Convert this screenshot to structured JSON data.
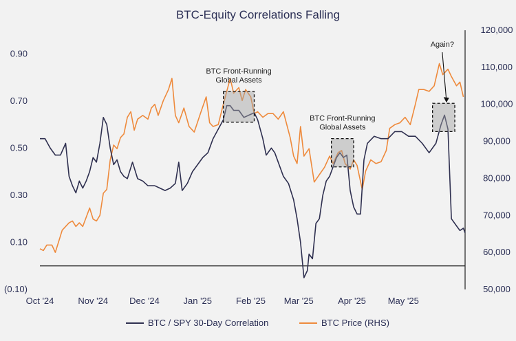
{
  "chart_data": {
    "type": "line",
    "title": "BTC-Equity Correlations Falling",
    "x_ticks": [
      "Oct '24",
      "Nov '24",
      "Dec '24",
      "Jan '25",
      "Feb '25",
      "Mar '25",
      "Apr '25",
      "May '25"
    ],
    "y_left_ticks": [
      "0.90",
      "0.70",
      "0.50",
      "0.30",
      "0.10",
      "(0.10)"
    ],
    "y_left_range": [
      -0.1,
      1.0
    ],
    "y_right_ticks": [
      "120,000",
      "110,000",
      "100,000",
      "90,000",
      "80,000",
      "70,000",
      "60,000",
      "50,000"
    ],
    "y_right_range": [
      50000,
      120000
    ],
    "series": [
      {
        "name": "BTC / SPY 30-Day Correlation",
        "axis": "left",
        "color": "#2f3050",
        "points": [
          [
            "2024-10-01",
            0.54
          ],
          [
            "2024-10-04",
            0.54
          ],
          [
            "2024-10-07",
            0.5
          ],
          [
            "2024-10-10",
            0.47
          ],
          [
            "2024-10-13",
            0.47
          ],
          [
            "2024-10-16",
            0.52
          ],
          [
            "2024-10-18",
            0.38
          ],
          [
            "2024-10-20",
            0.34
          ],
          [
            "2024-10-22",
            0.31
          ],
          [
            "2024-10-24",
            0.36
          ],
          [
            "2024-10-26",
            0.33
          ],
          [
            "2024-10-28",
            0.36
          ],
          [
            "2024-10-30",
            0.4
          ],
          [
            "2024-11-01",
            0.46
          ],
          [
            "2024-11-03",
            0.44
          ],
          [
            "2024-11-05",
            0.52
          ],
          [
            "2024-11-07",
            0.63
          ],
          [
            "2024-11-09",
            0.6
          ],
          [
            "2024-11-11",
            0.5
          ],
          [
            "2024-11-13",
            0.43
          ],
          [
            "2024-11-15",
            0.45
          ],
          [
            "2024-11-17",
            0.4
          ],
          [
            "2024-11-19",
            0.38
          ],
          [
            "2024-11-21",
            0.37
          ],
          [
            "2024-11-24",
            0.44
          ],
          [
            "2024-11-27",
            0.37
          ],
          [
            "2024-11-30",
            0.36
          ],
          [
            "2024-12-03",
            0.34
          ],
          [
            "2024-12-07",
            0.34
          ],
          [
            "2024-12-10",
            0.33
          ],
          [
            "2024-12-13",
            0.32
          ],
          [
            "2024-12-16",
            0.33
          ],
          [
            "2024-12-19",
            0.35
          ],
          [
            "2024-12-21",
            0.44
          ],
          [
            "2024-12-23",
            0.32
          ],
          [
            "2024-12-26",
            0.35
          ],
          [
            "2024-12-29",
            0.4
          ],
          [
            "2025-01-01",
            0.43
          ],
          [
            "2025-01-04",
            0.46
          ],
          [
            "2025-01-07",
            0.48
          ],
          [
            "2025-01-10",
            0.54
          ],
          [
            "2025-01-13",
            0.58
          ],
          [
            "2025-01-16",
            0.62
          ],
          [
            "2025-01-18",
            0.68
          ],
          [
            "2025-01-20",
            0.68
          ],
          [
            "2025-01-22",
            0.66
          ],
          [
            "2025-01-25",
            0.66
          ],
          [
            "2025-01-28",
            0.63
          ],
          [
            "2025-01-31",
            0.64
          ],
          [
            "2025-02-03",
            0.65
          ],
          [
            "2025-02-05",
            0.62
          ],
          [
            "2025-02-08",
            0.54
          ],
          [
            "2025-02-10",
            0.47
          ],
          [
            "2025-02-13",
            0.5
          ],
          [
            "2025-02-15",
            0.48
          ],
          [
            "2025-02-18",
            0.42
          ],
          [
            "2025-02-20",
            0.38
          ],
          [
            "2025-02-23",
            0.35
          ],
          [
            "2025-02-26",
            0.28
          ],
          [
            "2025-02-28",
            0.2
          ],
          [
            "2025-03-02",
            0.1
          ],
          [
            "2025-03-04",
            -0.05
          ],
          [
            "2025-03-06",
            -0.02
          ],
          [
            "2025-03-07",
            0.05
          ],
          [
            "2025-03-09",
            0.03
          ],
          [
            "2025-03-11",
            0.18
          ],
          [
            "2025-03-13",
            0.2
          ],
          [
            "2025-03-15",
            0.3
          ],
          [
            "2025-03-17",
            0.36
          ],
          [
            "2025-03-19",
            0.38
          ],
          [
            "2025-03-21",
            0.42
          ],
          [
            "2025-03-23",
            0.46
          ],
          [
            "2025-03-25",
            0.48
          ],
          [
            "2025-03-27",
            0.46
          ],
          [
            "2025-03-29",
            0.47
          ],
          [
            "2025-03-31",
            0.32
          ],
          [
            "2025-04-02",
            0.25
          ],
          [
            "2025-04-04",
            0.22
          ],
          [
            "2025-04-06",
            0.22
          ],
          [
            "2025-04-08",
            0.45
          ],
          [
            "2025-04-10",
            0.52
          ],
          [
            "2025-04-14",
            0.55
          ],
          [
            "2025-04-18",
            0.54
          ],
          [
            "2025-04-22",
            0.54
          ],
          [
            "2025-04-26",
            0.57
          ],
          [
            "2025-04-30",
            0.57
          ],
          [
            "2025-05-04",
            0.55
          ],
          [
            "2025-05-08",
            0.55
          ],
          [
            "2025-05-12",
            0.52
          ],
          [
            "2025-05-16",
            0.48
          ],
          [
            "2025-05-20",
            0.52
          ],
          [
            "2025-05-23",
            0.6
          ],
          [
            "2025-05-25",
            0.64
          ],
          [
            "2025-05-27",
            0.58
          ],
          [
            "2025-05-29",
            0.2
          ],
          [
            "2025-06-01",
            0.17
          ],
          [
            "2025-06-03",
            0.15
          ],
          [
            "2025-06-05",
            0.16
          ],
          [
            "2025-06-06",
            0.14
          ]
        ]
      },
      {
        "name": "BTC Price (RHS)",
        "axis": "right",
        "color": "#ee8a3c",
        "points": [
          [
            "2024-10-01",
            61000
          ],
          [
            "2024-10-03",
            60500
          ],
          [
            "2024-10-05",
            62000
          ],
          [
            "2024-10-08",
            62000
          ],
          [
            "2024-10-10",
            60000
          ],
          [
            "2024-10-12",
            63000
          ],
          [
            "2024-10-14",
            66000
          ],
          [
            "2024-10-16",
            67000
          ],
          [
            "2024-10-18",
            68000
          ],
          [
            "2024-10-20",
            68500
          ],
          [
            "2024-10-22",
            67000
          ],
          [
            "2024-10-24",
            68000
          ],
          [
            "2024-10-26",
            67000
          ],
          [
            "2024-10-28",
            69500
          ],
          [
            "2024-10-30",
            72000
          ],
          [
            "2024-11-01",
            69000
          ],
          [
            "2024-11-03",
            68500
          ],
          [
            "2024-11-05",
            70000
          ],
          [
            "2024-11-07",
            76000
          ],
          [
            "2024-11-09",
            77000
          ],
          [
            "2024-11-11",
            85000
          ],
          [
            "2024-11-13",
            89000
          ],
          [
            "2024-11-15",
            88000
          ],
          [
            "2024-11-17",
            91000
          ],
          [
            "2024-11-19",
            92000
          ],
          [
            "2024-11-21",
            96500
          ],
          [
            "2024-11-23",
            98000
          ],
          [
            "2024-11-25",
            93000
          ],
          [
            "2024-11-27",
            96000
          ],
          [
            "2024-11-30",
            97000
          ],
          [
            "2024-12-03",
            96000
          ],
          [
            "2024-12-05",
            99000
          ],
          [
            "2024-12-07",
            100000
          ],
          [
            "2024-12-09",
            97000
          ],
          [
            "2024-12-12",
            101000
          ],
          [
            "2024-12-15",
            104000
          ],
          [
            "2024-12-17",
            107000
          ],
          [
            "2024-12-19",
            97000
          ],
          [
            "2024-12-21",
            95000
          ],
          [
            "2024-12-24",
            99000
          ],
          [
            "2024-12-27",
            94000
          ],
          [
            "2024-12-30",
            92500
          ],
          [
            "2025-01-03",
            98000
          ],
          [
            "2025-01-06",
            102000
          ],
          [
            "2025-01-08",
            95000
          ],
          [
            "2025-01-10",
            94000
          ],
          [
            "2025-01-13",
            94500
          ],
          [
            "2025-01-16",
            100000
          ],
          [
            "2025-01-20",
            107000
          ],
          [
            "2025-01-22",
            103000
          ],
          [
            "2025-01-25",
            104500
          ],
          [
            "2025-01-27",
            101000
          ],
          [
            "2025-01-29",
            104000
          ],
          [
            "2025-02-01",
            102000
          ],
          [
            "2025-02-03",
            97500
          ],
          [
            "2025-02-05",
            98000
          ],
          [
            "2025-02-08",
            96500
          ],
          [
            "2025-02-11",
            97500
          ],
          [
            "2025-02-14",
            97500
          ],
          [
            "2025-02-17",
            96000
          ],
          [
            "2025-02-20",
            98000
          ],
          [
            "2025-02-24",
            91000
          ],
          [
            "2025-02-26",
            86000
          ],
          [
            "2025-02-28",
            84000
          ],
          [
            "2025-03-02",
            94000
          ],
          [
            "2025-03-04",
            86000
          ],
          [
            "2025-03-07",
            88000
          ],
          [
            "2025-03-10",
            79000
          ],
          [
            "2025-03-13",
            81000
          ],
          [
            "2025-03-16",
            83000
          ],
          [
            "2025-03-19",
            86000
          ],
          [
            "2025-03-21",
            84000
          ],
          [
            "2025-03-24",
            87000
          ],
          [
            "2025-03-26",
            87500
          ],
          [
            "2025-03-28",
            84000
          ],
          [
            "2025-03-31",
            82500
          ],
          [
            "2025-04-02",
            85000
          ],
          [
            "2025-04-04",
            83500
          ],
          [
            "2025-04-07",
            77000
          ],
          [
            "2025-04-09",
            82000
          ],
          [
            "2025-04-12",
            85000
          ],
          [
            "2025-04-15",
            84000
          ],
          [
            "2025-04-18",
            84500
          ],
          [
            "2025-04-21",
            87500
          ],
          [
            "2025-04-23",
            93500
          ],
          [
            "2025-04-26",
            94500
          ],
          [
            "2025-04-29",
            95000
          ],
          [
            "2025-05-02",
            96500
          ],
          [
            "2025-05-05",
            94500
          ],
          [
            "2025-05-08",
            100000
          ],
          [
            "2025-05-10",
            104000
          ],
          [
            "2025-05-13",
            104000
          ],
          [
            "2025-05-16",
            103500
          ],
          [
            "2025-05-19",
            105000
          ],
          [
            "2025-05-22",
            111000
          ],
          [
            "2025-05-24",
            108000
          ],
          [
            "2025-05-27",
            109500
          ],
          [
            "2025-05-29",
            107500
          ],
          [
            "2025-06-01",
            105000
          ],
          [
            "2025-06-03",
            106000
          ],
          [
            "2025-06-05",
            102000
          ]
        ]
      }
    ],
    "annotations": [
      {
        "text": "BTC Front-Running\nGlobal Assets",
        "box_from": "2025-01-16",
        "box_to": "2025-02-03",
        "y_top": 0.74,
        "y_bottom": 0.61
      },
      {
        "text": "BTC Front-Running\nGlobal Assets",
        "box_from": "2025-03-20",
        "box_to": "2025-04-02",
        "y_top": 0.54,
        "y_bottom": 0.42
      },
      {
        "text": "Again?",
        "box_from": "2025-05-18",
        "box_to": "2025-05-31",
        "y_top": 0.69,
        "y_bottom": 0.57
      }
    ],
    "legend_position": "bottom",
    "grid": false
  }
}
